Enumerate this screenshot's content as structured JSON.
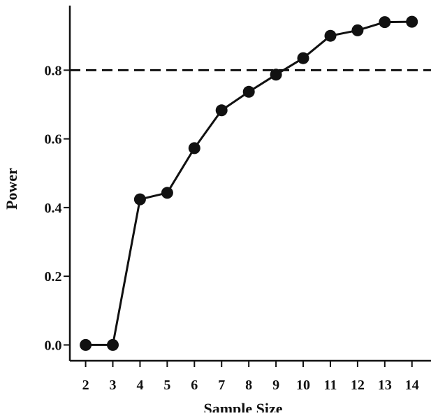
{
  "chart_data": {
    "type": "line",
    "xlabel": "Sample Size",
    "ylabel": "Power",
    "x": [
      2,
      3,
      4,
      5,
      6,
      7,
      8,
      9,
      10,
      11,
      12,
      13,
      14
    ],
    "y": [
      0.0,
      0.0,
      0.424,
      0.443,
      0.573,
      0.683,
      0.737,
      0.787,
      0.835,
      0.9,
      0.916,
      0.94,
      0.941
    ],
    "xlim": [
      1.42,
      14.7
    ],
    "ylim": [
      -0.046,
      0.988
    ],
    "xticks": [
      "2",
      "3",
      "4",
      "5",
      "6",
      "7",
      "8",
      "9",
      "10",
      "11",
      "12",
      "13",
      "14"
    ],
    "yticks": [
      "0.0",
      "0.2",
      "0.4",
      "0.6",
      "0.8"
    ],
    "reference_line": {
      "y": 0.8,
      "style": "dashed"
    },
    "grid": false,
    "legend": "none",
    "colors": {
      "line": "#111111",
      "marker": "#111111",
      "reference": "#111111",
      "axis": "#111111"
    }
  }
}
